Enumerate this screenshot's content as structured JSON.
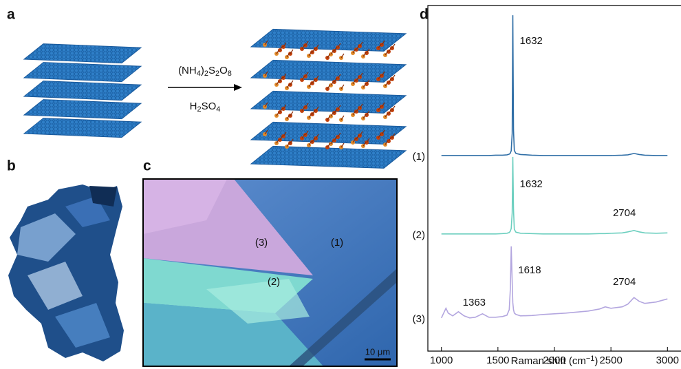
{
  "panels": {
    "a": {
      "label": "a",
      "reagent": [
        {
          "text": "(NH"
        },
        {
          "text": "4",
          "sub": true
        },
        {
          "text": ")"
        },
        {
          "text": "2",
          "sub": true
        },
        {
          "text": "S"
        },
        {
          "text": "2",
          "sub": true
        },
        {
          "text": "O"
        },
        {
          "text": "8",
          "sub": true
        }
      ],
      "acid": [
        {
          "text": "H"
        },
        {
          "text": "2",
          "sub": true
        },
        {
          "text": "SO"
        },
        {
          "text": "4",
          "sub": true
        }
      ]
    },
    "b": {
      "label": "b"
    },
    "c": {
      "label": "c",
      "regions": [
        "(3)",
        "(1)",
        "(2)"
      ],
      "scale_bar": "10 μm"
    },
    "d": {
      "label": "d"
    }
  },
  "chart_data": {
    "type": "line",
    "x": [
      1000,
      1040,
      1060,
      1100,
      1150,
      1200,
      1250,
      1300,
      1363,
      1420,
      1480,
      1540,
      1580,
      1600,
      1610,
      1618,
      1626,
      1632,
      1638,
      1645,
      1660,
      1700,
      1800,
      1900,
      2000,
      2100,
      2200,
      2300,
      2400,
      2450,
      2500,
      2600,
      2650,
      2704,
      2750,
      2800,
      2900,
      3000
    ],
    "series": [
      {
        "name": "(1)",
        "color": "#2f6ea6",
        "values": [
          56.6,
          56.6,
          56.6,
          56.6,
          56.6,
          56.6,
          56.6,
          56.6,
          56.6,
          56.6,
          56.7,
          56.7,
          56.8,
          57.0,
          57.3,
          58.0,
          63,
          97.2,
          64,
          58,
          57.2,
          56.9,
          56.7,
          56.6,
          56.6,
          56.6,
          56.6,
          56.6,
          56.6,
          56.6,
          56.6,
          56.7,
          56.8,
          57.2,
          56.9,
          56.7,
          56.6,
          56.6
        ]
      },
      {
        "name": "(2)",
        "color": "#6ccfbf",
        "values": [
          33.9,
          33.9,
          33.9,
          33.9,
          33.9,
          33.9,
          33.9,
          33.9,
          33.9,
          33.9,
          33.9,
          34.0,
          34.1,
          34.3,
          34.7,
          35.5,
          40,
          56.2,
          41,
          35.2,
          34.4,
          34.1,
          34.0,
          33.9,
          33.9,
          33.9,
          33.9,
          33.9,
          34.0,
          34.0,
          34.1,
          34.2,
          34.5,
          34.9,
          34.5,
          34.2,
          34.1,
          34.2
        ]
      },
      {
        "name": "(3)",
        "color": "#b3a6df",
        "values": [
          9.6,
          12.4,
          11,
          10.2,
          11.4,
          10.2,
          9.6,
          9.8,
          10.8,
          9.8,
          9.8,
          10,
          10.4,
          12,
          18,
          30.3,
          20,
          14,
          12,
          11,
          10.6,
          10.2,
          10.3,
          10.6,
          10.8,
          11,
          11.3,
          11.6,
          12.2,
          12.8,
          12.4,
          12.8,
          13.6,
          15.5,
          14.4,
          13.8,
          14.2,
          15.1
        ]
      }
    ],
    "xlim": [
      880,
      3120
    ],
    "xticks": [
      1000,
      1500,
      2000,
      2500,
      3000
    ],
    "ylim": [
      0,
      100
    ],
    "xlabel": [
      {
        "text": "Raman shift (cm"
      },
      {
        "text": "−1",
        "sup": true
      },
      {
        "text": ")"
      }
    ],
    "annotations": [
      {
        "text": "1632"
      },
      {
        "text": "1632"
      },
      {
        "text": "2704"
      },
      {
        "text": "1618"
      },
      {
        "text": "1363"
      },
      {
        "text": "2704"
      }
    ]
  }
}
